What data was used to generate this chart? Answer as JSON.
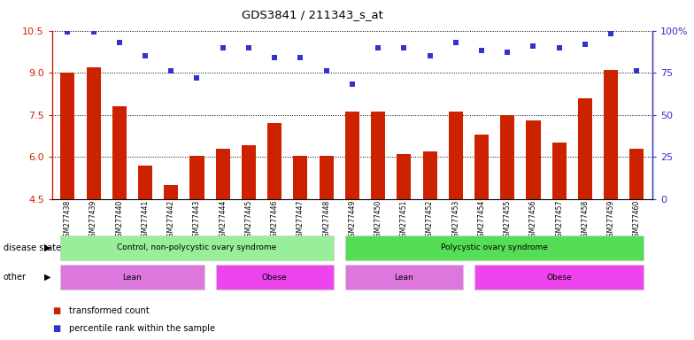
{
  "title": "GDS3841 / 211343_s_at",
  "samples": [
    "GSM277438",
    "GSM277439",
    "GSM277440",
    "GSM277441",
    "GSM277442",
    "GSM277443",
    "GSM277444",
    "GSM277445",
    "GSM277446",
    "GSM277447",
    "GSM277448",
    "GSM277449",
    "GSM277450",
    "GSM277451",
    "GSM277452",
    "GSM277453",
    "GSM277454",
    "GSM277455",
    "GSM277456",
    "GSM277457",
    "GSM277458",
    "GSM277459",
    "GSM277460"
  ],
  "transformed_count": [
    9.0,
    9.2,
    7.8,
    5.7,
    5.0,
    6.05,
    6.3,
    6.4,
    7.2,
    6.05,
    6.05,
    7.6,
    7.6,
    6.1,
    6.2,
    7.6,
    6.8,
    7.5,
    7.3,
    6.5,
    8.1,
    9.1,
    6.3
  ],
  "percentile": [
    99,
    99,
    93,
    85,
    76,
    72,
    90,
    90,
    84,
    84,
    76,
    68,
    90,
    90,
    85,
    93,
    88,
    87,
    91,
    90,
    92,
    98,
    76
  ],
  "ylim_left": [
    4.5,
    10.5
  ],
  "ylim_right": [
    0,
    100
  ],
  "yticks_left": [
    4.5,
    6.0,
    7.5,
    9.0,
    10.5
  ],
  "yticks_right": [
    0,
    25,
    50,
    75,
    100
  ],
  "ytick_labels_right": [
    "0",
    "25",
    "50",
    "75",
    "100%"
  ],
  "bar_color": "#cc2200",
  "dot_color": "#3333cc",
  "disease_state_groups": [
    {
      "label": "Control, non-polycystic ovary syndrome",
      "start": 0,
      "end": 11,
      "color": "#99ee99"
    },
    {
      "label": "Polycystic ovary syndrome",
      "start": 11,
      "end": 23,
      "color": "#55dd55"
    }
  ],
  "other_groups": [
    {
      "label": "Lean",
      "start": 0,
      "end": 6,
      "color": "#dd77dd"
    },
    {
      "label": "Obese",
      "start": 6,
      "end": 11,
      "color": "#ee44ee"
    },
    {
      "label": "Lean",
      "start": 11,
      "end": 16,
      "color": "#dd77dd"
    },
    {
      "label": "Obese",
      "start": 16,
      "end": 23,
      "color": "#ee44ee"
    }
  ]
}
